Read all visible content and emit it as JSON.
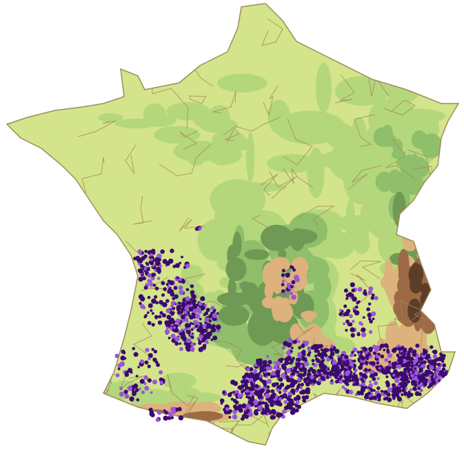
{
  "map": {
    "colors": {
      "background": "#ffffff",
      "lowland": "#d4e48a",
      "hills": "#b4d77c",
      "upland": "#8fbf6a",
      "mountain_low": "#6f9a55",
      "mountain_mid": "#ddb27c",
      "mountain_high": "#9c6a44",
      "peaks": "#5e3d28",
      "border": "#a08a5a",
      "occurrence_dark": "#3b0a6e",
      "occurrence_light": "#9a55d8"
    }
  }
}
